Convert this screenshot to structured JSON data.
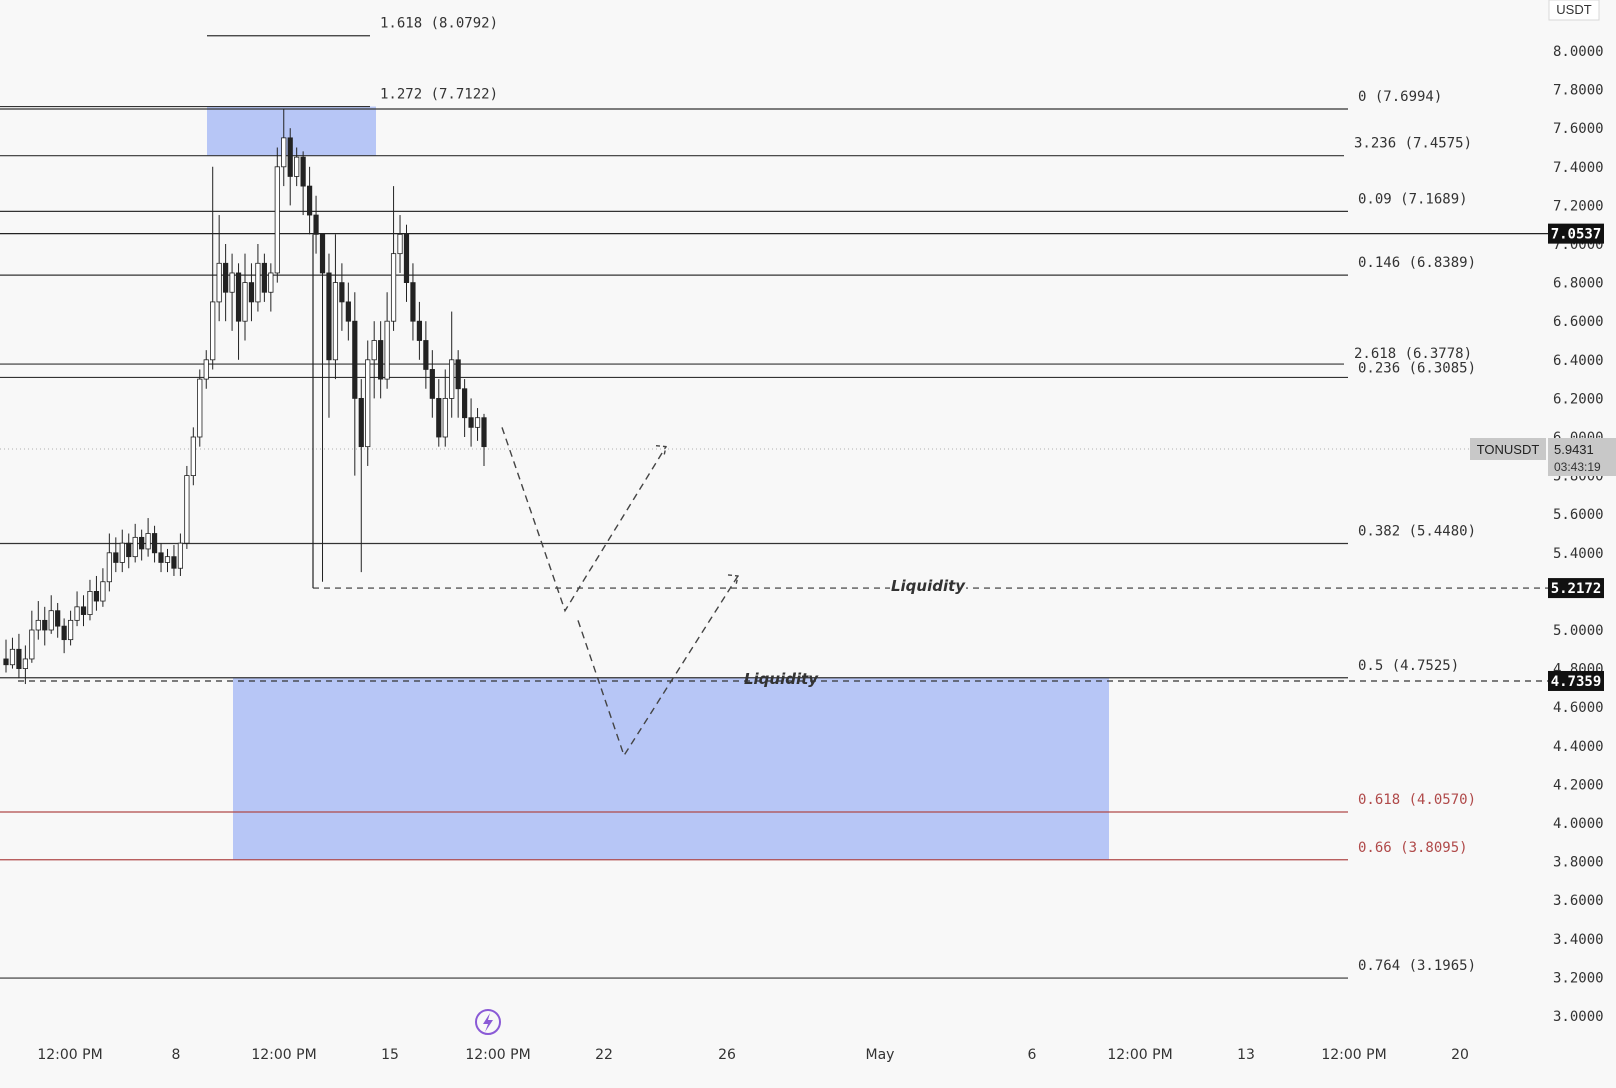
{
  "header": {
    "currency": "USDT"
  },
  "chart_data": {
    "type": "candlestick",
    "symbol": "TONUSDT",
    "last_price": "5.9431",
    "countdown": "03:43:19",
    "ylim": [
      2.9,
      8.2
    ],
    "y_ticks": [
      "8.0000",
      "7.8000",
      "7.6000",
      "7.4000",
      "7.2000",
      "7.0000",
      "6.8000",
      "6.6000",
      "6.4000",
      "6.2000",
      "6.0000",
      "5.8000",
      "5.6000",
      "5.4000",
      "5.2000",
      "5.0000",
      "4.8000",
      "4.6000",
      "4.4000",
      "4.2000",
      "4.0000",
      "3.8000",
      "3.6000",
      "3.4000",
      "3.2000",
      "3.0000"
    ],
    "x_ticks": [
      "12:00 PM",
      "8",
      "12:00 PM",
      "15",
      "12:00 PM",
      "22",
      "26",
      "May",
      "6",
      "12:00 PM",
      "13",
      "12:00 PM",
      "20"
    ],
    "price_badges": [
      {
        "label": "7.0537",
        "value": 7.0537
      },
      {
        "label": "5.2172",
        "value": 5.2172
      },
      {
        "label": "4.7359",
        "value": 4.7359
      }
    ],
    "fib_levels": [
      {
        "label": "1.618 (8.0792)",
        "value": 8.0792,
        "color": "#333333"
      },
      {
        "label": "1.272 (7.7122)",
        "value": 7.7122,
        "color": "#333333"
      },
      {
        "label": "0 (7.6994)",
        "value": 7.6994,
        "color": "#333333"
      },
      {
        "label": "3.236 (7.4575)",
        "value": 7.4575,
        "color": "#333333"
      },
      {
        "label": "0.09 (7.1689)",
        "value": 7.1689,
        "color": "#333333"
      },
      {
        "label": "0.146 (6.8389)",
        "value": 6.8389,
        "color": "#333333"
      },
      {
        "label": "2.618 (6.3778)",
        "value": 6.3778,
        "color": "#333333"
      },
      {
        "label": "0.236 (6.3085)",
        "value": 6.3085,
        "color": "#333333"
      },
      {
        "label": "0.382 (5.4480)",
        "value": 5.448,
        "color": "#333333"
      },
      {
        "label": "0.5 (4.7525)",
        "value": 4.7525,
        "color": "#333333"
      },
      {
        "label": "0.618 (4.0570)",
        "value": 4.057,
        "color": "#b04a4a"
      },
      {
        "label": "0.66 (3.8095)",
        "value": 3.8095,
        "color": "#b04a4a"
      },
      {
        "label": "0.764 (3.1965)",
        "value": 3.1965,
        "color": "#333333"
      }
    ],
    "annotations": [
      {
        "text": "Liquidity",
        "value": 5.2172
      },
      {
        "text": "Liquidity",
        "value": 4.7359
      }
    ],
    "zones": [
      {
        "y_top": 7.7122,
        "y_bottom": 7.4575,
        "color": "#b3c3f5"
      },
      {
        "y_top": 4.7525,
        "y_bottom": 3.8095,
        "color": "#b3c3f5"
      }
    ],
    "projection_paths": [
      [
        [
          6.05,
          0
        ],
        [
          5.1,
          1
        ],
        [
          5.95,
          2
        ]
      ],
      [
        [
          5.05,
          0
        ],
        [
          4.35,
          1
        ],
        [
          5.28,
          2
        ]
      ]
    ],
    "candles": [
      [
        4.85,
        4.82,
        4.95,
        4.78
      ],
      [
        4.82,
        4.9,
        4.96,
        4.8
      ],
      [
        4.9,
        4.8,
        4.98,
        4.75
      ],
      [
        4.8,
        4.85,
        4.92,
        4.72
      ],
      [
        4.85,
        5.0,
        5.1,
        4.83
      ],
      [
        5.0,
        5.05,
        5.15,
        4.95
      ],
      [
        5.05,
        5.0,
        5.12,
        4.92
      ],
      [
        5.0,
        5.1,
        5.18,
        4.98
      ],
      [
        5.1,
        5.02,
        5.14,
        4.96
      ],
      [
        5.02,
        4.95,
        5.06,
        4.88
      ],
      [
        4.95,
        5.05,
        5.1,
        4.92
      ],
      [
        5.05,
        5.12,
        5.2,
        5.02
      ],
      [
        5.12,
        5.08,
        5.18,
        5.02
      ],
      [
        5.08,
        5.2,
        5.26,
        5.05
      ],
      [
        5.2,
        5.15,
        5.28,
        5.1
      ],
      [
        5.15,
        5.25,
        5.32,
        5.12
      ],
      [
        5.25,
        5.4,
        5.5,
        5.2
      ],
      [
        5.4,
        5.35,
        5.48,
        5.3
      ],
      [
        5.35,
        5.45,
        5.52,
        5.3
      ],
      [
        5.45,
        5.38,
        5.5,
        5.32
      ],
      [
        5.38,
        5.48,
        5.55,
        5.35
      ],
      [
        5.48,
        5.42,
        5.52,
        5.36
      ],
      [
        5.42,
        5.5,
        5.58,
        5.38
      ],
      [
        5.5,
        5.4,
        5.54,
        5.35
      ],
      [
        5.4,
        5.35,
        5.45,
        5.3
      ],
      [
        5.35,
        5.38,
        5.42,
        5.3
      ],
      [
        5.38,
        5.32,
        5.44,
        5.28
      ],
      [
        5.32,
        5.45,
        5.5,
        5.28
      ],
      [
        5.45,
        5.8,
        5.85,
        5.42
      ],
      [
        5.8,
        6.0,
        6.05,
        5.75
      ],
      [
        6.0,
        6.3,
        6.35,
        5.95
      ],
      [
        6.3,
        6.4,
        6.45,
        6.25
      ],
      [
        6.4,
        6.7,
        7.4,
        6.35
      ],
      [
        6.7,
        6.9,
        7.15,
        6.6
      ],
      [
        6.9,
        6.75,
        7.0,
        6.6
      ],
      [
        6.75,
        6.85,
        6.95,
        6.55
      ],
      [
        6.85,
        6.6,
        6.9,
        6.4
      ],
      [
        6.6,
        6.8,
        6.95,
        6.5
      ],
      [
        6.8,
        6.7,
        6.9,
        6.6
      ],
      [
        6.7,
        6.9,
        7.0,
        6.65
      ],
      [
        6.9,
        6.75,
        6.95,
        6.7
      ],
      [
        6.75,
        6.85,
        6.9,
        6.65
      ],
      [
        6.85,
        7.4,
        7.5,
        6.8
      ],
      [
        7.4,
        7.55,
        7.7,
        7.3
      ],
      [
        7.55,
        7.35,
        7.6,
        7.2
      ],
      [
        7.35,
        7.45,
        7.5,
        7.3
      ],
      [
        7.45,
        7.3,
        7.48,
        7.15
      ],
      [
        7.3,
        7.15,
        7.4,
        7.05
      ],
      [
        7.15,
        7.05,
        7.25,
        6.95
      ],
      [
        7.05,
        6.85,
        7.05,
        5.25
      ],
      [
        6.85,
        6.4,
        6.95,
        6.1
      ],
      [
        6.4,
        6.8,
        7.05,
        6.3
      ],
      [
        6.8,
        6.7,
        6.9,
        6.55
      ],
      [
        6.7,
        6.6,
        6.8,
        6.5
      ],
      [
        6.6,
        6.2,
        6.75,
        5.8
      ],
      [
        6.2,
        5.95,
        6.3,
        5.3
      ],
      [
        5.95,
        6.4,
        6.5,
        5.85
      ],
      [
        6.4,
        6.5,
        6.6,
        6.2
      ],
      [
        6.5,
        6.3,
        6.6,
        6.2
      ],
      [
        6.3,
        6.6,
        6.75,
        6.25
      ],
      [
        6.6,
        6.95,
        7.3,
        6.55
      ],
      [
        6.95,
        7.05,
        7.15,
        6.85
      ],
      [
        7.05,
        6.8,
        7.1,
        6.7
      ],
      [
        6.8,
        6.6,
        6.9,
        6.5
      ],
      [
        6.6,
        6.5,
        6.7,
        6.4
      ],
      [
        6.5,
        6.35,
        6.6,
        6.25
      ],
      [
        6.35,
        6.2,
        6.45,
        6.1
      ],
      [
        6.2,
        6.0,
        6.3,
        5.95
      ],
      [
        6.0,
        6.2,
        6.35,
        5.95
      ],
      [
        6.2,
        6.4,
        6.65,
        6.1
      ],
      [
        6.4,
        6.25,
        6.45,
        6.1
      ],
      [
        6.25,
        6.1,
        6.3,
        6.0
      ],
      [
        6.1,
        6.05,
        6.2,
        5.95
      ],
      [
        6.05,
        6.1,
        6.15,
        5.98
      ],
      [
        6.1,
        5.95,
        6.12,
        5.85
      ]
    ]
  }
}
